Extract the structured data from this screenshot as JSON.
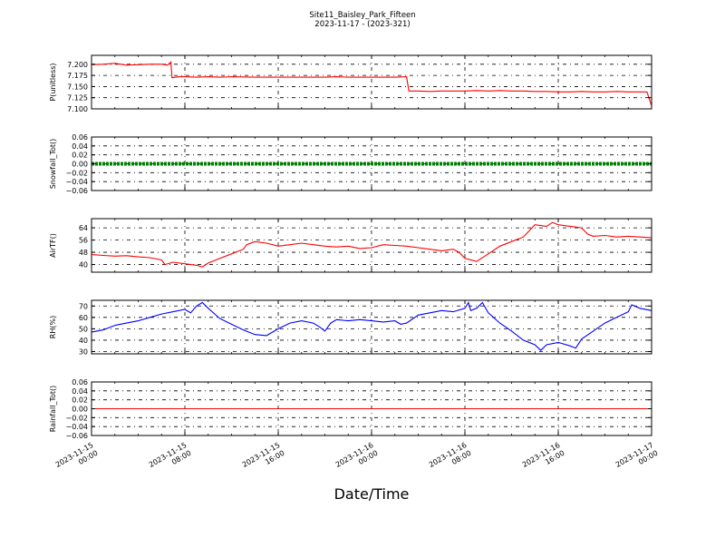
{
  "title": "Site11_Baisley_Park_Fifteen",
  "subtitle": "2023-11-17 - (2023-321)",
  "xlabel": "Date/Time",
  "chart_data": {
    "type": "line",
    "x_ticks": [
      {
        "line1": "2023-11-15",
        "line2": "00:00",
        "hour": 0
      },
      {
        "line1": "2023-11-15",
        "line2": "08:00",
        "hour": 8
      },
      {
        "line1": "2023-11-15",
        "line2": "16:00",
        "hour": 16
      },
      {
        "line1": "2023-11-16",
        "line2": "00:00",
        "hour": 24
      },
      {
        "line1": "2023-11-16",
        "line2": "08:00",
        "hour": 32
      },
      {
        "line1": "2023-11-16",
        "line2": "16:00",
        "hour": 40
      },
      {
        "line1": "2023-11-17",
        "line2": "00:00",
        "hour": 48
      }
    ],
    "xlim_hours": [
      0,
      48
    ],
    "grid": true,
    "panels": [
      {
        "ylabel": "P(unitless)",
        "color": "#ff0000",
        "ylim": [
          7.1,
          7.22
        ],
        "yticks": [
          7.1,
          7.125,
          7.15,
          7.175,
          7.2
        ],
        "ytick_labels": [
          "7.100",
          "7.125",
          "7.150",
          "7.175",
          "7.200"
        ],
        "series": [
          [
            0,
            7.199
          ],
          [
            1,
            7.2
          ],
          [
            2,
            7.202
          ],
          [
            2.5,
            7.2
          ],
          [
            3,
            7.198
          ],
          [
            4,
            7.199
          ],
          [
            5,
            7.2
          ],
          [
            6,
            7.2
          ],
          [
            6.5,
            7.198
          ],
          [
            6.8,
            7.205
          ],
          [
            6.9,
            7.17
          ],
          [
            7.5,
            7.172
          ],
          [
            8,
            7.172
          ],
          [
            9,
            7.171
          ],
          [
            10,
            7.172
          ],
          [
            11,
            7.171
          ],
          [
            12,
            7.172
          ],
          [
            14,
            7.171
          ],
          [
            16,
            7.171
          ],
          [
            18,
            7.171
          ],
          [
            20,
            7.171
          ],
          [
            21,
            7.172
          ],
          [
            22,
            7.171
          ],
          [
            24,
            7.171
          ],
          [
            25,
            7.171
          ],
          [
            26,
            7.171
          ],
          [
            27,
            7.172
          ],
          [
            27.2,
            7.14
          ],
          [
            28,
            7.14
          ],
          [
            29,
            7.139
          ],
          [
            30,
            7.14
          ],
          [
            31,
            7.14
          ],
          [
            32,
            7.14
          ],
          [
            33,
            7.141
          ],
          [
            34,
            7.14
          ],
          [
            35,
            7.141
          ],
          [
            36,
            7.14
          ],
          [
            37,
            7.14
          ],
          [
            38,
            7.139
          ],
          [
            39,
            7.139
          ],
          [
            40,
            7.138
          ],
          [
            41,
            7.138
          ],
          [
            42,
            7.139
          ],
          [
            43,
            7.138
          ],
          [
            44,
            7.138
          ],
          [
            45,
            7.139
          ],
          [
            46,
            7.138
          ],
          [
            47,
            7.138
          ],
          [
            47.6,
            7.138
          ],
          [
            48,
            7.107
          ]
        ]
      },
      {
        "ylabel": "Snowfall_Tot()",
        "color": "#008000",
        "ylim": [
          -0.06,
          0.06
        ],
        "yticks": [
          -0.06,
          -0.04,
          -0.02,
          0.0,
          0.02,
          0.04,
          0.06
        ],
        "ytick_labels": [
          "−0.06",
          "−0.04",
          "−0.02",
          "0.00",
          "0.02",
          "0.04",
          "0.06"
        ],
        "series": [
          [
            0,
            0
          ],
          [
            48,
            0
          ]
        ]
      },
      {
        "ylabel": "AirTF()",
        "color": "#ff0000",
        "ylim": [
          35,
          70
        ],
        "yticks": [
          40,
          48,
          56,
          64
        ],
        "ytick_labels": [
          "40",
          "48",
          "56",
          "64"
        ],
        "series": [
          [
            0,
            46.5
          ],
          [
            1,
            46
          ],
          [
            2,
            45.5
          ],
          [
            3,
            45.8
          ],
          [
            4,
            45
          ],
          [
            5,
            44.5
          ],
          [
            6,
            43
          ],
          [
            6.3,
            40
          ],
          [
            7,
            41.5
          ],
          [
            8,
            40.5
          ],
          [
            9,
            39.5
          ],
          [
            9.5,
            38.5
          ],
          [
            10,
            41
          ],
          [
            11,
            44
          ],
          [
            12,
            47
          ],
          [
            13,
            50
          ],
          [
            13.3,
            53
          ],
          [
            14,
            55
          ],
          [
            15,
            54
          ],
          [
            16,
            52
          ],
          [
            17,
            53
          ],
          [
            18,
            54
          ],
          [
            19,
            53
          ],
          [
            20,
            52
          ],
          [
            21,
            51.5
          ],
          [
            22,
            52
          ],
          [
            23,
            50.5
          ],
          [
            24,
            51
          ],
          [
            25,
            53
          ],
          [
            26,
            52.5
          ],
          [
            27,
            52
          ],
          [
            28,
            51
          ],
          [
            29,
            50
          ],
          [
            30,
            49
          ],
          [
            31,
            50
          ],
          [
            31.5,
            48
          ],
          [
            32,
            44
          ],
          [
            33,
            42
          ],
          [
            34,
            47
          ],
          [
            35,
            52
          ],
          [
            36,
            55
          ],
          [
            37,
            58
          ],
          [
            37.5,
            62
          ],
          [
            38,
            66
          ],
          [
            39,
            65
          ],
          [
            39.5,
            67.5
          ],
          [
            40,
            66
          ],
          [
            41,
            65
          ],
          [
            42,
            64
          ],
          [
            42.5,
            60
          ],
          [
            43,
            58.5
          ],
          [
            44,
            59
          ],
          [
            45,
            58
          ],
          [
            46,
            58.5
          ],
          [
            47,
            58
          ],
          [
            48,
            57.5
          ]
        ]
      },
      {
        "ylabel": "RH(%)",
        "color": "#0000ff",
        "ylim": [
          28,
          75
        ],
        "yticks": [
          30,
          40,
          50,
          60,
          70
        ],
        "ytick_labels": [
          "30",
          "40",
          "50",
          "60",
          "70"
        ],
        "series": [
          [
            0,
            47
          ],
          [
            1,
            49
          ],
          [
            2,
            53
          ],
          [
            3,
            55
          ],
          [
            4,
            57
          ],
          [
            5,
            60
          ],
          [
            6,
            63
          ],
          [
            7,
            65
          ],
          [
            8,
            67
          ],
          [
            8.5,
            64
          ],
          [
            9,
            70
          ],
          [
            9.5,
            73
          ],
          [
            10,
            68
          ],
          [
            11,
            59
          ],
          [
            12,
            54
          ],
          [
            13,
            49
          ],
          [
            14,
            45
          ],
          [
            15,
            44
          ],
          [
            16,
            50
          ],
          [
            17,
            55
          ],
          [
            18,
            57
          ],
          [
            19,
            55
          ],
          [
            19.5,
            52
          ],
          [
            20,
            48
          ],
          [
            20.5,
            55
          ],
          [
            21,
            58
          ],
          [
            22,
            57
          ],
          [
            23,
            58
          ],
          [
            24,
            57
          ],
          [
            25,
            56
          ],
          [
            26,
            57
          ],
          [
            26.5,
            54
          ],
          [
            27,
            55
          ],
          [
            28,
            62
          ],
          [
            29,
            64
          ],
          [
            30,
            66
          ],
          [
            31,
            65
          ],
          [
            32,
            68
          ],
          [
            32.3,
            73
          ],
          [
            32.5,
            66
          ],
          [
            33,
            68
          ],
          [
            33.5,
            73
          ],
          [
            34,
            64
          ],
          [
            35,
            55
          ],
          [
            36,
            48
          ],
          [
            37,
            40
          ],
          [
            38,
            36
          ],
          [
            38.5,
            31
          ],
          [
            39,
            36
          ],
          [
            40,
            38
          ],
          [
            41,
            35
          ],
          [
            41.5,
            33
          ],
          [
            42,
            41
          ],
          [
            43,
            48
          ],
          [
            44,
            55
          ],
          [
            45,
            60
          ],
          [
            46,
            65
          ],
          [
            46.3,
            71
          ],
          [
            47,
            68
          ],
          [
            48,
            66
          ]
        ]
      },
      {
        "ylabel": "Rainfall_Tot()",
        "color": "#ff0000",
        "ylim": [
          -0.06,
          0.06
        ],
        "yticks": [
          -0.06,
          -0.04,
          -0.02,
          0.0,
          0.02,
          0.04,
          0.06
        ],
        "ytick_labels": [
          "−0.06",
          "−0.04",
          "−0.02",
          "0.00",
          "0.02",
          "0.04",
          "0.06"
        ],
        "series": [
          [
            0,
            0
          ],
          [
            48,
            0
          ]
        ]
      }
    ]
  }
}
